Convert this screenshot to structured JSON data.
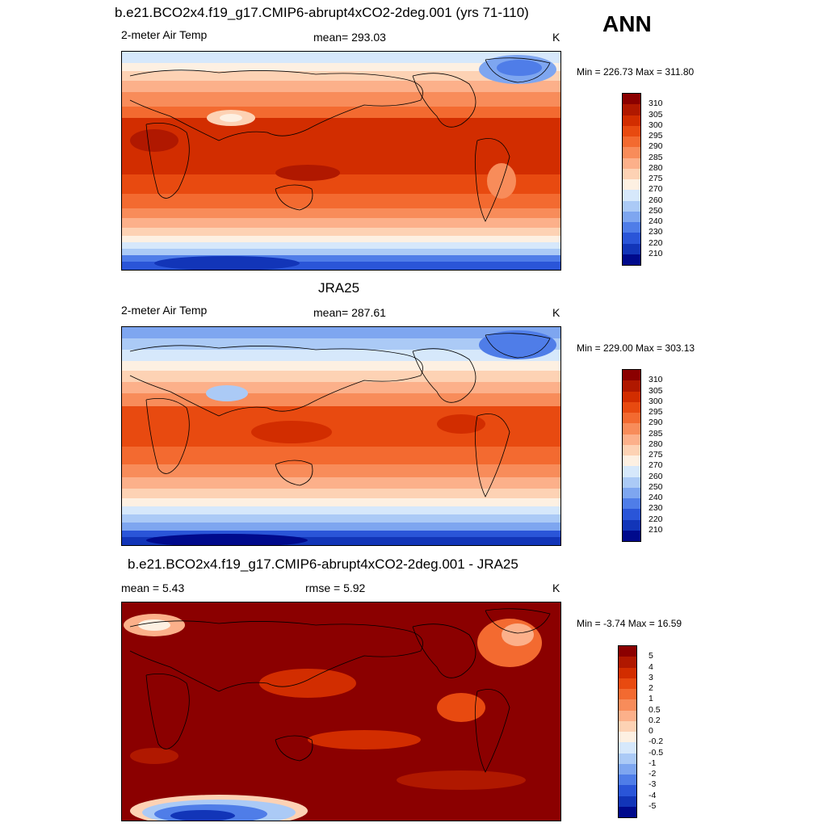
{
  "season": "ANN",
  "panels": [
    {
      "title": "b.e21.BCO2x4.f19_g17.CMIP6-abrupt4xCO2-2deg.001 (yrs 71-110)",
      "left_label": "2-meter Air Temp",
      "center_label": "mean= 293.03",
      "units": "K",
      "minmax": "Min = 226.73 Max = 311.80",
      "colorbar": {
        "labels": [
          "310",
          "305",
          "300",
          "295",
          "290",
          "285",
          "280",
          "275",
          "270",
          "260",
          "250",
          "240",
          "230",
          "220",
          "210"
        ],
        "colors": [
          "#8b0000",
          "#b01800",
          "#d22d00",
          "#e84a10",
          "#f36a30",
          "#f88c5a",
          "#fcb08a",
          "#fdd2b4",
          "#fdf0e2",
          "#d6e8fb",
          "#abcaf6",
          "#7ea6f0",
          "#4f7de8",
          "#2a55d8",
          "#1235b8",
          "#000a8c"
        ]
      }
    },
    {
      "title": "JRA25",
      "left_label": "2-meter Air Temp",
      "center_label": "mean= 287.61",
      "units": "K",
      "minmax": "Min = 229.00 Max = 303.13",
      "colorbar": {
        "labels": [
          "310",
          "305",
          "300",
          "295",
          "290",
          "285",
          "280",
          "275",
          "270",
          "260",
          "250",
          "240",
          "230",
          "220",
          "210"
        ],
        "colors": [
          "#8b0000",
          "#b01800",
          "#d22d00",
          "#e84a10",
          "#f36a30",
          "#f88c5a",
          "#fcb08a",
          "#fdd2b4",
          "#fdf0e2",
          "#d6e8fb",
          "#abcaf6",
          "#7ea6f0",
          "#4f7de8",
          "#2a55d8",
          "#1235b8",
          "#000a8c"
        ]
      }
    },
    {
      "title": "b.e21.BCO2x4.f19_g17.CMIP6-abrupt4xCO2-2deg.001 - JRA25",
      "left_label": "mean =   5.43",
      "center_label": "rmse =    5.92",
      "units": "K",
      "minmax": "Min =  -3.74 Max =  16.59",
      "colorbar": {
        "labels": [
          "5",
          "4",
          "3",
          "2",
          "1",
          "0.5",
          "0.2",
          "0",
          "-0.2",
          "-0.5",
          "-1",
          "-2",
          "-3",
          "-4",
          "-5"
        ],
        "colors": [
          "#8b0000",
          "#b01800",
          "#d22d00",
          "#e84a10",
          "#f36a30",
          "#f88c5a",
          "#fcb08a",
          "#fdd2b4",
          "#fdf0e2",
          "#d6e8fb",
          "#abcaf6",
          "#7ea6f0",
          "#4f7de8",
          "#2a55d8",
          "#1235b8",
          "#000a8c"
        ]
      }
    }
  ]
}
